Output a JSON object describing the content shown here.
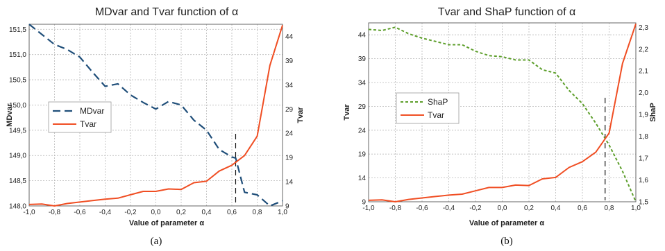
{
  "chart_data": [
    {
      "type": "line",
      "title": "MDvar and Tvar function of α",
      "xlabel": "Value of parameter α",
      "ylabel_left": "MDvar",
      "ylabel_right": "Tvar",
      "caption": "(a)",
      "x_ticks": [
        "-1,0",
        "-0,8",
        "-0,6",
        "-0,4",
        "-0,2",
        "0,0",
        "0,2",
        "0,4",
        "0,6",
        "0,8",
        "1,0"
      ],
      "y_left_ticks": [
        "148,0",
        "148,5",
        "149,0",
        "149,5",
        "150,0",
        "150,5",
        "151,0",
        "151,5"
      ],
      "y_right_ticks": [
        "9",
        "14",
        "19",
        "24",
        "29",
        "34",
        "39",
        "44"
      ],
      "xlim": [
        -1.0,
        1.0
      ],
      "ylim_left": [
        148.0,
        151.6
      ],
      "ylim_right": [
        9,
        46.5
      ],
      "grid": true,
      "legend": "left-middle",
      "vline_x": 0.63,
      "series": [
        {
          "name": "MDvar",
          "axis": "left",
          "style": "dashed",
          "color": "#1f4e79",
          "x": [
            -1.0,
            -0.9,
            -0.8,
            -0.7,
            -0.6,
            -0.5,
            -0.4,
            -0.3,
            -0.2,
            -0.1,
            0.0,
            0.1,
            0.2,
            0.3,
            0.4,
            0.5,
            0.6,
            0.63,
            0.7,
            0.8,
            0.9,
            1.0
          ],
          "values": [
            151.6,
            151.4,
            151.2,
            151.1,
            150.95,
            150.65,
            150.37,
            150.42,
            150.2,
            150.05,
            149.92,
            150.07,
            150.0,
            149.7,
            149.5,
            149.12,
            148.97,
            148.95,
            148.27,
            148.22,
            148.0,
            148.1
          ]
        },
        {
          "name": "Tvar",
          "axis": "right",
          "style": "solid",
          "color": "#f04e23",
          "x": [
            -1.0,
            -0.9,
            -0.8,
            -0.7,
            -0.6,
            -0.5,
            -0.4,
            -0.3,
            -0.2,
            -0.1,
            0.0,
            0.1,
            0.2,
            0.3,
            0.4,
            0.5,
            0.6,
            0.7,
            0.8,
            0.9,
            1.0
          ],
          "values": [
            9.3,
            9.4,
            9.0,
            9.5,
            9.8,
            10.1,
            10.4,
            10.6,
            11.3,
            12.0,
            12.0,
            12.5,
            12.4,
            13.8,
            14.1,
            16.2,
            17.4,
            19.4,
            23.4,
            38.0,
            46.3
          ]
        }
      ]
    },
    {
      "type": "line",
      "title": "Tvar and ShaP function of α",
      "xlabel": "Value of parameter α",
      "ylabel_left": "Tvar",
      "ylabel_right": "ShaP",
      "caption": "(b)",
      "x_ticks": [
        "-1,0",
        "-0,8",
        "-0,6",
        "-0,4",
        "-0,2",
        "0,0",
        "0,2",
        "0,4",
        "0,6",
        "0,8",
        "1,0"
      ],
      "y_left_ticks": [
        "9",
        "14",
        "19",
        "24",
        "29",
        "34",
        "39",
        "44"
      ],
      "y_right_ticks": [
        "1,5",
        "1,6",
        "1,7",
        "1,8",
        "1,9",
        "2,0",
        "2,1",
        "2,2",
        "2,3"
      ],
      "xlim": [
        -1.0,
        1.0
      ],
      "ylim_left": [
        9,
        46.5
      ],
      "ylim_right": [
        1.5,
        2.32
      ],
      "grid": true,
      "legend": "left-middle",
      "vline_x": 0.77,
      "series": [
        {
          "name": "ShaP",
          "axis": "right",
          "style": "dotted",
          "color": "#5c9e2a",
          "x": [
            -1.0,
            -0.9,
            -0.8,
            -0.7,
            -0.6,
            -0.5,
            -0.4,
            -0.3,
            -0.2,
            -0.1,
            0.0,
            0.1,
            0.2,
            0.3,
            0.4,
            0.5,
            0.6,
            0.7,
            0.8,
            0.9,
            1.0
          ],
          "values": [
            2.29,
            2.285,
            2.3,
            2.27,
            2.25,
            2.235,
            2.22,
            2.22,
            2.19,
            2.17,
            2.165,
            2.15,
            2.15,
            2.105,
            2.09,
            2.01,
            1.95,
            1.86,
            1.76,
            1.64,
            1.5
          ]
        },
        {
          "name": "Tvar",
          "axis": "left",
          "style": "solid",
          "color": "#f04e23",
          "x": [
            -1.0,
            -0.9,
            -0.8,
            -0.7,
            -0.6,
            -0.5,
            -0.4,
            -0.3,
            -0.2,
            -0.1,
            0.0,
            0.1,
            0.2,
            0.3,
            0.4,
            0.5,
            0.6,
            0.7,
            0.8,
            0.9,
            1.0
          ],
          "values": [
            9.3,
            9.4,
            9.0,
            9.5,
            9.8,
            10.1,
            10.4,
            10.6,
            11.3,
            12.0,
            12.0,
            12.5,
            12.4,
            13.8,
            14.1,
            16.2,
            17.4,
            19.4,
            23.4,
            38.0,
            46.3
          ]
        }
      ]
    }
  ]
}
